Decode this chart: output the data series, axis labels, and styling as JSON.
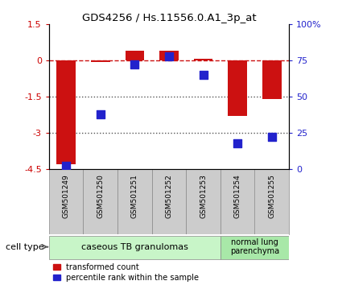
{
  "title": "GDS4256 / Hs.11556.0.A1_3p_at",
  "samples": [
    "GSM501249",
    "GSM501250",
    "GSM501251",
    "GSM501252",
    "GSM501253",
    "GSM501254",
    "GSM501255"
  ],
  "transformed_counts": [
    -4.3,
    -0.05,
    0.4,
    0.4,
    0.07,
    -2.3,
    -1.6
  ],
  "percentile_ranks": [
    2,
    38,
    72,
    78,
    65,
    18,
    22
  ],
  "ylim_left": [
    -4.5,
    1.5
  ],
  "ylim_right": [
    0,
    100
  ],
  "left_ticks": [
    1.5,
    0,
    -1.5,
    -3,
    -4.5
  ],
  "right_ticks": [
    0,
    25,
    50,
    75,
    100
  ],
  "cell_type_groups": [
    {
      "label": "caseous TB granulomas",
      "indices": [
        0,
        1,
        2,
        3,
        4
      ],
      "color": "#c8f5c8"
    },
    {
      "label": "normal lung\nparenchyma",
      "indices": [
        5,
        6
      ],
      "color": "#a8e8a8"
    }
  ],
  "bar_color": "#cc1111",
  "dot_color": "#2222cc",
  "dashed_line_color": "#cc1111",
  "dotted_line_color": "#555555",
  "legend_bar_label": "transformed count",
  "legend_dot_label": "percentile rank within the sample",
  "cell_type_label": "cell type",
  "bar_width": 0.55,
  "dot_size": 55,
  "sample_box_color": "#cccccc",
  "sample_box_edge": "#888888"
}
